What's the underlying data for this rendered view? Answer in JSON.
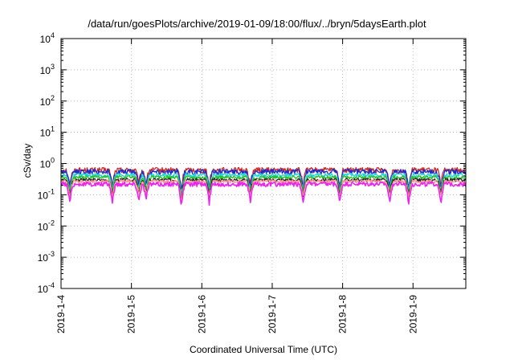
{
  "chart_data": {
    "type": "line",
    "title": "/data/run/goesPlots/archive/2019-01-09/18:00/flux/../bryn/5daysEarth.plot",
    "xlabel": "Coordinated Universal Time (UTC)",
    "ylabel": "cSv/day",
    "y_scale": "log",
    "ylim": [
      0.0001,
      10000
    ],
    "y_ticks": [
      {
        "value": 0.0001,
        "base": "10",
        "exp": "-4"
      },
      {
        "value": 0.001,
        "base": "10",
        "exp": "-3"
      },
      {
        "value": 0.01,
        "base": "10",
        "exp": "-2"
      },
      {
        "value": 0.1,
        "base": "10",
        "exp": "-1"
      },
      {
        "value": 1,
        "base": "10",
        "exp": "0"
      },
      {
        "value": 10,
        "base": "10",
        "exp": "1"
      },
      {
        "value": 100,
        "base": "10",
        "exp": "2"
      },
      {
        "value": 1000,
        "base": "10",
        "exp": "3"
      },
      {
        "value": 10000,
        "base": "10",
        "exp": "4"
      }
    ],
    "xlim": [
      "2019-01-04",
      "2019-01-09 18:00"
    ],
    "x_ticks": [
      "2019-1-4",
      "2019-1-5",
      "2019-1-6",
      "2019-1-7",
      "2019-1-8",
      "2019-1-9"
    ],
    "grid": true,
    "legend": "none",
    "series_note_colors": [
      "#cc2a2a",
      "#1c2ccc",
      "#22d4d4",
      "#26c026",
      "#222222",
      "#ff9696",
      "#ee22ee"
    ],
    "series": [
      {
        "color": "#cc2a2a",
        "base": 0.62,
        "jitter": 0.14,
        "dip": 0.75
      },
      {
        "color": "#1c2ccc",
        "base": 0.55,
        "jitter": 0.12,
        "dip": 0.7
      },
      {
        "color": "#22d4d4",
        "base": 0.42,
        "jitter": 0.08,
        "dip": 0.8
      },
      {
        "color": "#26c026",
        "base": 0.36,
        "jitter": 0.05,
        "dip": 0.85
      },
      {
        "color": "#222222",
        "base": 0.3,
        "jitter": 0.04,
        "dip": 0.85
      },
      {
        "color": "#ff9696",
        "base": 0.27,
        "jitter": 0.04,
        "dip": 0.8
      },
      {
        "color": "#ee22ee",
        "base": 0.22,
        "jitter": 0.04,
        "dip": 0.3
      }
    ],
    "dips": [
      {
        "x": "2019-01-04 03:00",
        "depth": 0.55
      },
      {
        "x": "2019-01-04 17:30",
        "depth": 0.6
      },
      {
        "x": "2019-01-05 02:30",
        "depth": 0.7
      },
      {
        "x": "2019-01-05 05:00",
        "depth": 0.75
      },
      {
        "x": "2019-01-05 17:00",
        "depth": 0.35
      },
      {
        "x": "2019-01-06 02:30",
        "depth": 0.6
      },
      {
        "x": "2019-01-06 16:30",
        "depth": 0.65
      },
      {
        "x": "2019-01-07 10:30",
        "depth": 0.6
      },
      {
        "x": "2019-01-07 23:00",
        "depth": 0.55
      },
      {
        "x": "2019-01-08 16:00",
        "depth": 0.6
      },
      {
        "x": "2019-01-08 22:30",
        "depth": 0.55
      },
      {
        "x": "2019-01-09 09:30",
        "depth": 0.6
      }
    ]
  }
}
